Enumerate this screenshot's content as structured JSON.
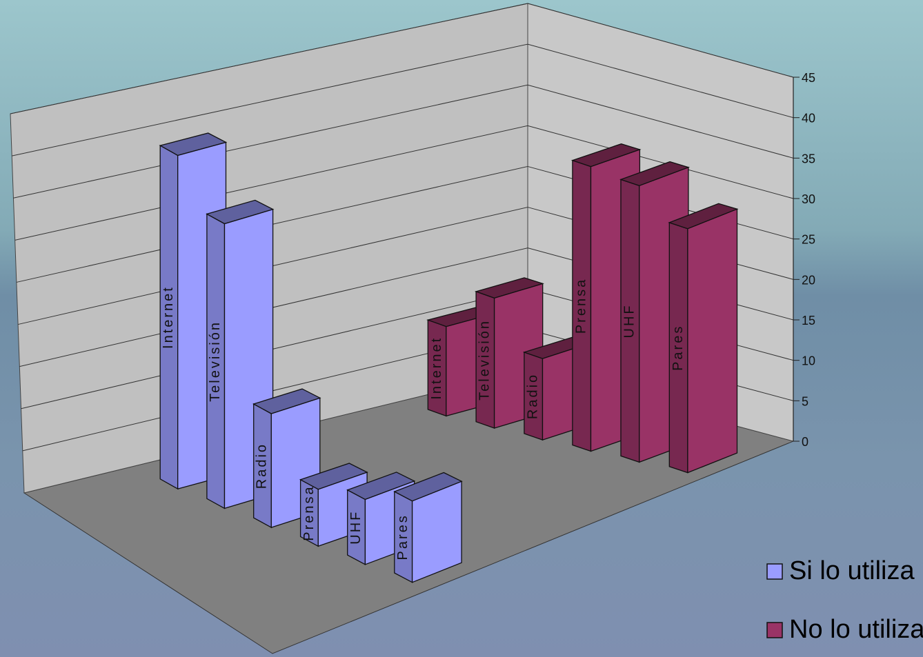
{
  "chart_data": {
    "type": "bar",
    "categories": [
      "Internet",
      "Televisión",
      "Radio",
      "Prensa",
      "UHF",
      "Pares"
    ],
    "series": [
      {
        "name": "Si lo utiliza",
        "color": "#9a9cff",
        "values": [
          41,
          35,
          14,
          7,
          8,
          10
        ]
      },
      {
        "name": "No lo utiliza",
        "color": "#993366",
        "values": [
          11,
          16,
          10,
          35,
          34,
          30
        ]
      }
    ],
    "y_ticks": [
      "0",
      "5",
      "10",
      "15",
      "20",
      "25",
      "30",
      "35",
      "40",
      "45"
    ],
    "ylim": [
      0,
      45
    ],
    "grid": true,
    "legend_position": "bottom-right",
    "view": "3d-column"
  }
}
